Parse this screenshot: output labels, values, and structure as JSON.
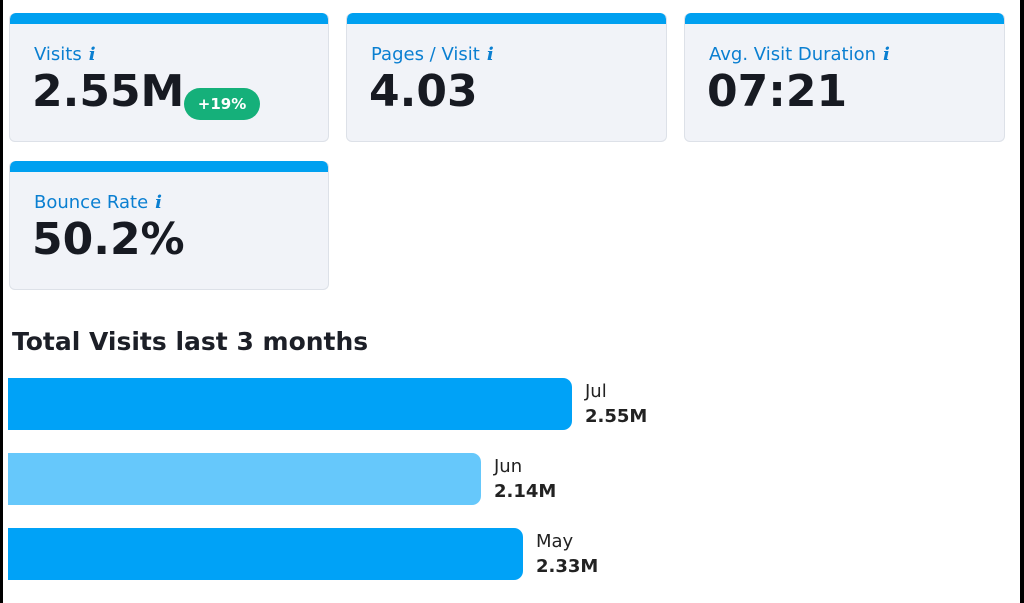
{
  "metrics": {
    "visits": {
      "label": "Visits",
      "value": "2.55M",
      "badge": "+19%"
    },
    "pages_per_visit": {
      "label": "Pages / Visit",
      "value": "4.03"
    },
    "avg_visit_duration": {
      "label": "Avg. Visit Duration",
      "value": "07:21"
    },
    "bounce_rate": {
      "label": "Bounce Rate",
      "value": "50.2%"
    },
    "info_glyph": "i"
  },
  "colors": {
    "accent": "#00a0f0",
    "label_blue": "#0a7fd1",
    "badge_green": "#15b07a",
    "bar_primary": "#00a2f7",
    "bar_light": "#66c8fb"
  },
  "chart_data": {
    "type": "bar",
    "title": "Total Visits last 3 months",
    "orientation": "horizontal",
    "categories": [
      "Jul",
      "Jun",
      "May"
    ],
    "values": [
      2.55,
      2.14,
      2.33
    ],
    "value_labels": [
      "2.55M",
      "2.14M",
      "2.33M"
    ],
    "unit": "M",
    "colors": [
      "#00a2f7",
      "#66c8fb",
      "#00a2f7"
    ]
  }
}
